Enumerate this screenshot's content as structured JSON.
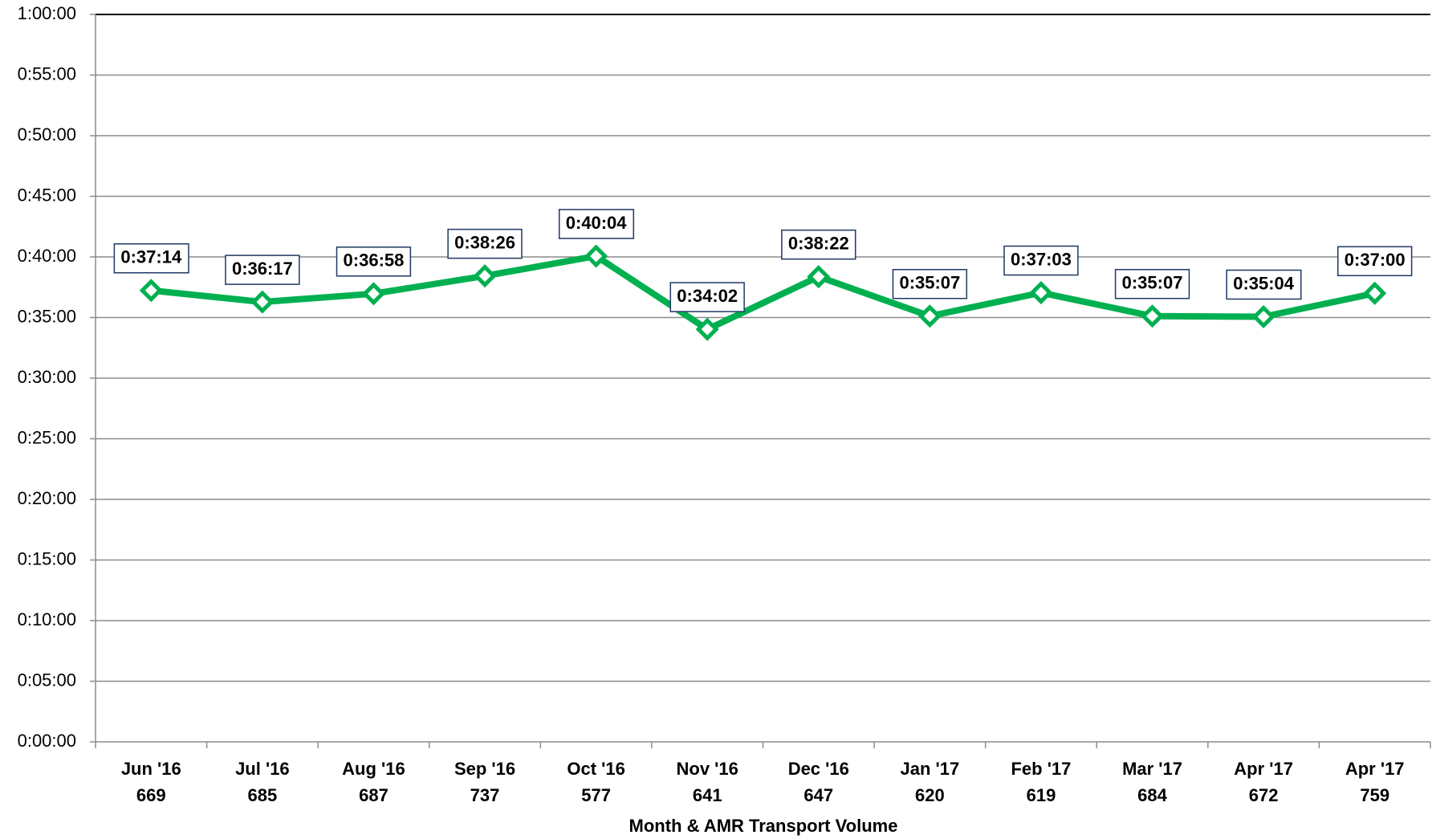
{
  "chart_data": {
    "type": "line",
    "x_label": "Month & AMR Transport Volume",
    "categories": [
      "Jun '16",
      "Jul '16",
      "Aug '16",
      "Sep '16",
      "Oct '16",
      "Nov '16",
      "Dec '16",
      "Jan '17",
      "Feb '17",
      "Mar '17",
      "Apr '17",
      "Apr '17"
    ],
    "transport_volumes": [
      669,
      685,
      687,
      737,
      577,
      641,
      647,
      620,
      619,
      684,
      672,
      759
    ],
    "values": [
      2234,
      2177,
      2218,
      2306,
      2404,
      2042,
      2302,
      2107,
      2223,
      2107,
      2104,
      2220
    ],
    "value_labels": [
      "0:37:14",
      "0:36:17",
      "0:36:58",
      "0:38:26",
      "0:40:04",
      "0:34:02",
      "0:38:22",
      "0:35:07",
      "0:37:03",
      "0:35:07",
      "0:35:04",
      "0:37:00"
    ],
    "color": "#00b050",
    "ylim": [
      0,
      3600
    ],
    "yticks": [
      {
        "value": 0,
        "label": "0:00:00"
      },
      {
        "value": 300,
        "label": "0:05:00"
      },
      {
        "value": 600,
        "label": "0:10:00"
      },
      {
        "value": 900,
        "label": "0:15:00"
      },
      {
        "value": 1200,
        "label": "0:20:00"
      },
      {
        "value": 1500,
        "label": "0:25:00"
      },
      {
        "value": 1800,
        "label": "0:30:00"
      },
      {
        "value": 2100,
        "label": "0:35:00"
      },
      {
        "value": 2400,
        "label": "0:40:00"
      },
      {
        "value": 2700,
        "label": "0:45:00"
      },
      {
        "value": 3000,
        "label": "0:50:00"
      },
      {
        "value": 3300,
        "label": "0:55:00"
      },
      {
        "value": 3600,
        "label": "1:00:00"
      }
    ],
    "grid": true
  }
}
